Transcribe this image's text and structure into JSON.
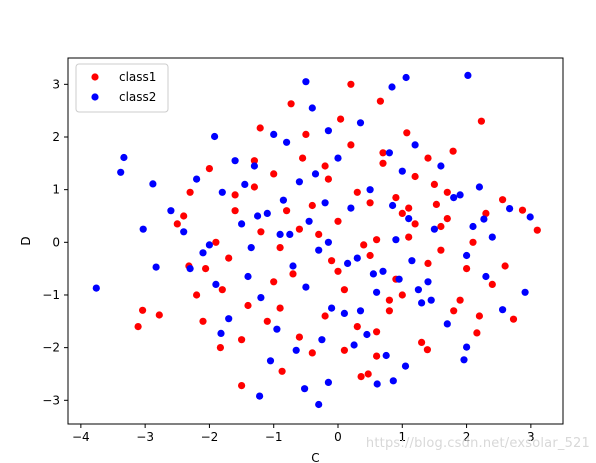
{
  "watermark": "https://blog.csdn.net/exsolar_521",
  "chart_data": {
    "type": "scatter",
    "xlabel": "C",
    "ylabel": "D",
    "xlim": [
      -4.2,
      3.5
    ],
    "ylim": [
      -3.45,
      3.5
    ],
    "xticks": [
      -4,
      -3,
      -2,
      -1,
      0,
      1,
      2,
      3
    ],
    "yticks": [
      -3,
      -2,
      -1,
      0,
      1,
      2,
      3
    ],
    "grid": false,
    "legend_position": "top-left",
    "series": [
      {
        "name": "class1",
        "color": "#ff0000",
        "x": [
          0.04,
          0.2,
          0.66,
          -0.73,
          1.07,
          -1.21,
          2.23,
          1.79,
          2.56,
          1.53,
          3.1,
          2.87,
          -1.83,
          -2.32,
          -2.1,
          -3.04,
          -3.11,
          -2.78,
          -2.06,
          -1.5,
          -0.87,
          0.36,
          0.47,
          0.6,
          1.39,
          2.16,
          2.73,
          -0.55,
          -0.15,
          0.7,
          1.2,
          1.7,
          2.3,
          -1.6,
          -1.0,
          -2.4,
          -1.2,
          0.9,
          1.6,
          -0.4,
          0.3,
          -0.9,
          1.1,
          -1.7,
          2.0,
          -0.7,
          0.5,
          1.4,
          -2.2,
          -1.4,
          0.1,
          0.8,
          -0.2,
          -1.1,
          1.9,
          2.4,
          -0.6,
          0.6,
          -1.5,
          1.3,
          0.0,
          -0.3,
          0.4,
          -0.8,
          1.0,
          -1.3,
          1.5,
          -1.9,
          0.2,
          0.7,
          -0.5,
          1.8,
          -2.0,
          0.9,
          -0.1,
          1.2,
          -1.8,
          2.1,
          0.3,
          -0.4,
          1.6,
          -1.0,
          0.5,
          -2.5,
          2.6,
          -0.2,
          0.8,
          -1.3,
          1.0,
          0.1,
          -0.6,
          1.4,
          -1.6,
          2.2,
          0.6,
          -0.9,
          1.7,
          -2.3,
          0.0,
          1.1
        ],
        "y": [
          2.34,
          3.0,
          2.68,
          2.63,
          2.08,
          2.17,
          2.3,
          1.73,
          0.81,
          0.72,
          0.23,
          0.61,
          -2.0,
          -0.45,
          -1.5,
          -1.29,
          -1.6,
          -1.38,
          -0.5,
          -2.72,
          -2.45,
          -2.55,
          -2.5,
          -2.16,
          -2.04,
          -1.72,
          -1.46,
          1.6,
          1.2,
          1.5,
          1.25,
          0.95,
          0.55,
          0.9,
          1.3,
          0.5,
          0.2,
          0.85,
          0.3,
          0.7,
          0.95,
          -0.1,
          0.1,
          -0.3,
          -0.5,
          -0.6,
          -0.25,
          -0.4,
          -1.0,
          -1.2,
          -0.9,
          -1.1,
          -1.4,
          -1.5,
          -1.1,
          -0.8,
          -1.8,
          -1.7,
          -1.85,
          -1.9,
          0.4,
          0.15,
          -0.05,
          0.6,
          0.55,
          1.05,
          1.1,
          0.0,
          1.85,
          1.7,
          2.05,
          -1.3,
          1.4,
          -0.7,
          -0.35,
          0.35,
          -0.9,
          0.0,
          -1.6,
          -2.1,
          -0.15,
          -0.75,
          0.75,
          0.35,
          -0.45,
          1.45,
          -1.3,
          1.55,
          -1.0,
          -2.05,
          0.25,
          1.6,
          0.6,
          -1.4,
          0.05,
          -1.25,
          0.45,
          0.95,
          -0.55,
          0.65
        ]
      },
      {
        "name": "class2",
        "color": "#0000ff",
        "x": [
          2.02,
          1.06,
          0.84,
          -0.5,
          -1.92,
          -3.33,
          -3.38,
          -2.88,
          -3.03,
          -2.83,
          -3.76,
          -1.82,
          -1.22,
          -0.52,
          -0.3,
          -0.15,
          0.61,
          0.86,
          1.96,
          2.0,
          2.56,
          2.91,
          2.99,
          2.67,
          2.27,
          -0.4,
          -0.15,
          0.35,
          -1.0,
          1.2,
          -1.6,
          1.6,
          -2.2,
          2.2,
          -2.6,
          -0.8,
          0.8,
          0.0,
          -1.3,
          1.0,
          -0.6,
          0.5,
          -1.8,
          1.8,
          -2.4,
          2.4,
          -0.2,
          0.2,
          -1.1,
          1.1,
          -1.5,
          1.5,
          -0.9,
          0.9,
          -2.0,
          2.0,
          -0.3,
          0.3,
          -0.7,
          0.7,
          -1.4,
          1.4,
          -0.5,
          0.6,
          -1.2,
          1.3,
          -0.1,
          0.1,
          -1.7,
          1.7,
          -0.95,
          0.45,
          -0.25,
          0.25,
          -0.65,
          0.75,
          -1.05,
          1.05,
          -2.1,
          2.1,
          -0.45,
          0.55,
          -0.85,
          0.95,
          -1.45,
          1.45,
          -0.15,
          0.15,
          -1.25,
          1.25,
          -0.35,
          0.35,
          -1.9,
          1.9,
          -2.3,
          2.3,
          -0.75,
          0.85,
          -1.35,
          1.15
        ],
        "y": [
          3.17,
          3.13,
          2.95,
          3.05,
          2.01,
          1.61,
          1.33,
          1.11,
          0.25,
          -0.47,
          -0.87,
          -1.73,
          -2.92,
          -2.78,
          -3.08,
          -2.66,
          -2.69,
          -2.63,
          -2.23,
          -1.99,
          -1.28,
          -0.95,
          0.48,
          0.64,
          0.44,
          2.55,
          2.12,
          2.27,
          2.05,
          1.85,
          1.55,
          1.45,
          1.2,
          1.05,
          0.6,
          1.9,
          1.7,
          1.6,
          1.45,
          1.35,
          1.15,
          1.0,
          0.95,
          0.85,
          0.2,
          0.1,
          0.75,
          0.65,
          0.55,
          0.45,
          0.35,
          0.25,
          0.15,
          0.05,
          -0.05,
          -0.25,
          -0.15,
          -0.3,
          -0.45,
          -0.55,
          -0.65,
          -0.75,
          -0.85,
          -0.95,
          -1.05,
          -1.15,
          -1.25,
          -1.35,
          -1.45,
          -1.55,
          -1.65,
          -1.75,
          -1.85,
          -1.95,
          -2.05,
          -2.15,
          -2.25,
          -2.35,
          -0.2,
          0.3,
          0.4,
          -0.6,
          0.8,
          -0.7,
          1.1,
          -1.1,
          0.0,
          -0.4,
          0.5,
          -0.9,
          1.3,
          -1.3,
          -0.8,
          0.9,
          -0.5,
          -0.65,
          0.15,
          0.7,
          -0.1,
          -0.35
        ]
      }
    ]
  }
}
